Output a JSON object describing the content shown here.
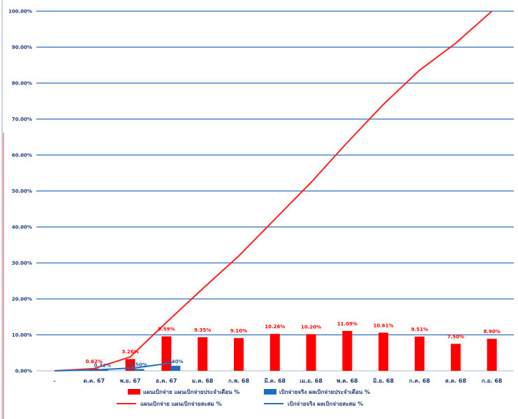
{
  "chart_data": {
    "type": "bar",
    "categories": [
      "-",
      "ต.ค. 67",
      "พ.ย. 67",
      "ธ.ค. 67",
      "ม.ค. 68",
      "ก.พ. 68",
      "มี.ค. 68",
      "เม.ย. 68",
      "พ.ค. 68",
      "มิ.ย. 68",
      "ก.ค. 68",
      "ส.ค. 68",
      "ก.ย. 68"
    ],
    "ylim": [
      0,
      100
    ],
    "y_ticks": [
      "0.00%",
      "10.00%",
      "20.00%",
      "30.00%",
      "40.00%",
      "50.00%",
      "60.00%",
      "70.00%",
      "80.00%",
      "90.00%",
      "100.00%"
    ],
    "grid": true,
    "legend_position": "bottom",
    "series": [
      {
        "name": "แผนเบิกจ่าย แผนเบิกจ่ายประจำเดือน %",
        "kind": "bar",
        "color": "#ff0000",
        "values": [
          null,
          0.62,
          3.26,
          9.59,
          9.35,
          9.1,
          10.26,
          10.2,
          11.09,
          10.61,
          9.51,
          7.5,
          8.9
        ],
        "labels": [
          "",
          "0.62%",
          "3.26%",
          "9.59%",
          "9.35%",
          "9.10%",
          "10.26%",
          "10.20%",
          "11.09%",
          "10.61%",
          "9.51%",
          "7.50%",
          "8.90%"
        ]
      },
      {
        "name": "เบิกจ่ายจริง ผลเบิกจ่ายประจำเดือน %",
        "kind": "bar",
        "color": "#1f6fc0",
        "values": [
          null,
          0.32,
          0.5,
          1.4,
          null,
          null,
          null,
          null,
          null,
          null,
          null,
          null,
          null
        ],
        "labels": [
          "",
          "0.32%",
          "0.50%",
          "1.40%",
          "",
          "",
          "",
          "",
          "",
          "",
          "",
          "",
          ""
        ]
      },
      {
        "name": "แผนเบิกจ่าย แผนเบิกจ่ายสะสม %",
        "kind": "line",
        "color": "#ff2020",
        "values": [
          0,
          0.62,
          3.88,
          13.47,
          22.82,
          31.92,
          42.18,
          52.38,
          63.47,
          74.08,
          83.59,
          91.09,
          100
        ]
      },
      {
        "name": "เบิกจ่ายจริง ผลเบิกจ่ายสะสม %",
        "kind": "line",
        "color": "#1f6fc0",
        "values": [
          0,
          0.32,
          0.82,
          2.22,
          null,
          null,
          null,
          null,
          null,
          null,
          null,
          null,
          null
        ]
      }
    ]
  }
}
